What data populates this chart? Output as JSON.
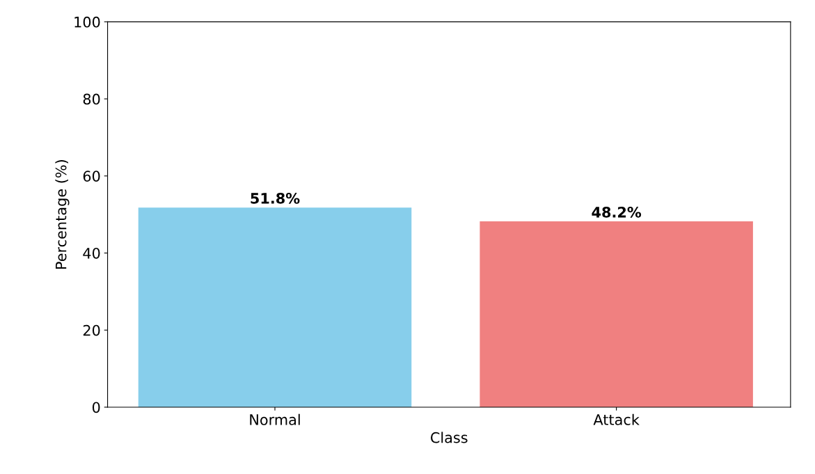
{
  "chart_data": {
    "type": "bar",
    "xlabel": "Class",
    "ylabel": "Percentage (%)",
    "categories": [
      "Normal",
      "Attack"
    ],
    "values": [
      51.8,
      48.2
    ],
    "value_labels": [
      "51.8%",
      "48.2%"
    ],
    "colors": [
      "#87ceeb",
      "#f08080"
    ],
    "ylim": [
      0,
      100
    ],
    "yticks": [
      0,
      20,
      40,
      60,
      80,
      100
    ],
    "grid": false,
    "legend": false
  }
}
